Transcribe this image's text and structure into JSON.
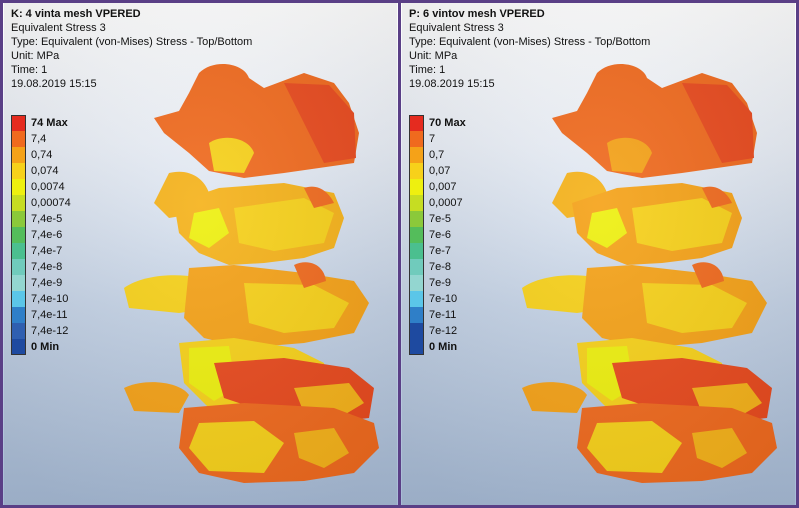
{
  "colors": [
    "#e52b1f",
    "#f06a1e",
    "#f5a218",
    "#f7d11a",
    "#eef00f",
    "#c6dd22",
    "#8bc93a",
    "#54bd5b",
    "#4bbf8f",
    "#70cbbc",
    "#5bc6e8",
    "#2f7fc8",
    "#1e4aa0"
  ],
  "left": {
    "title": "K: 4 vinta mesh VPERED",
    "subtitle": "Equivalent Stress 3",
    "type": "Type: Equivalent (von-Mises) Stress - Top/Bottom",
    "unit": "Unit: MPa",
    "time": "Time: 1",
    "date": "19.08.2019 15:15",
    "legend": [
      "74 Max",
      "7,4",
      "0,74",
      "0,074",
      "0,0074",
      "0,00074",
      "7,4e-5",
      "7,4e-6",
      "7,4e-7",
      "7,4e-8",
      "7,4e-9",
      "7,4e-10",
      "7,4e-11",
      "7,4e-12",
      "0 Min"
    ]
  },
  "right": {
    "title": "P: 6 vintov mesh VPERED",
    "subtitle": "Equivalent Stress 3",
    "type": "Type: Equivalent (von-Mises) Stress - Top/Bottom",
    "unit": "Unit: MPa",
    "time": "Time: 1",
    "date": "19.08.2019 15:15",
    "legend": [
      "70 Max",
      "7",
      "0,7",
      "0,07",
      "0,007",
      "0,0007",
      "7e-5",
      "7e-6",
      "7e-7",
      "7e-8",
      "7e-9",
      "7e-10",
      "7e-11",
      "7e-12",
      "0 Min"
    ]
  }
}
